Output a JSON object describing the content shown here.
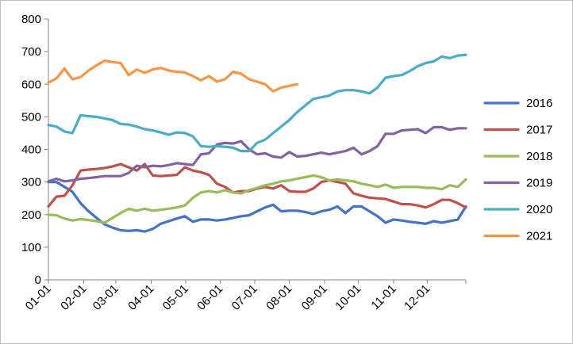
{
  "chart_data": {
    "type": "line",
    "title": "",
    "xlabel": "",
    "ylabel": "",
    "ylim": [
      0,
      800
    ],
    "yticks": [
      0,
      100,
      200,
      300,
      400,
      500,
      600,
      700,
      800
    ],
    "xlim": [
      0,
      52
    ],
    "x_tick_labels": [
      "01-01",
      "02-01",
      "03-01",
      "04-01",
      "05-01",
      "06-01",
      "07-01",
      "08-01",
      "09-01",
      "10-01",
      "11-01",
      "12-01"
    ],
    "x_tick_positions": [
      0,
      4.4,
      8.4,
      12.8,
      17.1,
      21.4,
      25.7,
      30.0,
      34.4,
      38.6,
      43.0,
      47.2
    ],
    "grid": false,
    "legend_position": "right",
    "series": [
      {
        "name": "2016",
        "color": "#4472c4",
        "x": [
          0,
          1,
          2,
          3,
          4,
          5,
          6,
          7,
          8,
          9,
          10,
          11,
          12,
          13,
          14,
          15,
          16,
          17,
          18,
          19,
          20,
          21,
          22,
          23,
          24,
          25,
          26,
          27,
          28,
          29,
          30,
          31,
          32,
          33,
          34,
          35,
          36,
          37,
          38,
          39,
          40,
          41,
          42,
          43,
          44,
          45,
          46,
          47,
          48,
          49,
          50,
          51,
          52
        ],
        "y": [
          300,
          300,
          285,
          270,
          235,
          210,
          190,
          170,
          160,
          152,
          150,
          152,
          148,
          156,
          172,
          180,
          188,
          195,
          178,
          185,
          185,
          182,
          185,
          190,
          195,
          198,
          210,
          222,
          230,
          210,
          212,
          212,
          208,
          202,
          210,
          215,
          225,
          205,
          225,
          225,
          210,
          195,
          175,
          185,
          182,
          178,
          175,
          172,
          180,
          175,
          180,
          185,
          225
        ]
      },
      {
        "name": "2017",
        "color": "#c0504d",
        "x": [
          0,
          1,
          2,
          3,
          4,
          5,
          6,
          7,
          8,
          9,
          10,
          11,
          12,
          13,
          14,
          15,
          16,
          17,
          18,
          19,
          20,
          21,
          22,
          23,
          24,
          25,
          26,
          27,
          28,
          29,
          30,
          31,
          32,
          33,
          34,
          35,
          36,
          37,
          38,
          39,
          40,
          41,
          42,
          43,
          44,
          45,
          46,
          47,
          48,
          49,
          50,
          51,
          52
        ],
        "y": [
          225,
          255,
          258,
          290,
          335,
          338,
          340,
          343,
          348,
          355,
          345,
          335,
          355,
          320,
          318,
          320,
          322,
          345,
          335,
          330,
          322,
          295,
          285,
          268,
          272,
          272,
          280,
          285,
          280,
          290,
          272,
          270,
          270,
          280,
          300,
          305,
          300,
          295,
          265,
          258,
          252,
          250,
          248,
          240,
          232,
          232,
          228,
          222,
          232,
          245,
          245,
          235,
          222
        ]
      },
      {
        "name": "2018",
        "color": "#9bbb59",
        "x": [
          0,
          1,
          2,
          3,
          4,
          5,
          6,
          7,
          8,
          9,
          10,
          11,
          12,
          13,
          14,
          15,
          16,
          17,
          18,
          19,
          20,
          21,
          22,
          23,
          24,
          25,
          26,
          27,
          28,
          29,
          30,
          31,
          32,
          33,
          34,
          35,
          36,
          37,
          38,
          39,
          40,
          41,
          42,
          43,
          44,
          45,
          46,
          47,
          48,
          49,
          50,
          51,
          52
        ],
        "y": [
          200,
          198,
          188,
          182,
          186,
          183,
          180,
          175,
          190,
          205,
          218,
          212,
          218,
          212,
          215,
          218,
          222,
          228,
          252,
          268,
          272,
          268,
          275,
          268,
          265,
          275,
          282,
          290,
          295,
          302,
          305,
          310,
          315,
          320,
          315,
          305,
          308,
          305,
          302,
          295,
          290,
          285,
          292,
          282,
          285,
          285,
          285,
          282,
          282,
          278,
          290,
          285,
          308
        ]
      },
      {
        "name": "2019",
        "color": "#8064a2",
        "x": [
          0,
          1,
          2,
          3,
          4,
          5,
          6,
          7,
          8,
          9,
          10,
          11,
          12,
          13,
          14,
          15,
          16,
          17,
          18,
          19,
          20,
          21,
          22,
          23,
          24,
          25,
          26,
          27,
          28,
          29,
          30,
          31,
          32,
          33,
          34,
          35,
          36,
          37,
          38,
          39,
          40,
          41,
          42,
          43,
          44,
          45,
          46,
          47,
          48,
          49,
          50,
          51,
          52
        ],
        "y": [
          302,
          310,
          302,
          305,
          310,
          312,
          315,
          318,
          318,
          318,
          328,
          350,
          345,
          350,
          348,
          352,
          358,
          355,
          352,
          385,
          388,
          415,
          420,
          418,
          425,
          400,
          385,
          388,
          378,
          375,
          392,
          378,
          380,
          385,
          390,
          385,
          390,
          395,
          405,
          385,
          395,
          410,
          448,
          448,
          458,
          460,
          462,
          450,
          468,
          468,
          460,
          465,
          465
        ]
      },
      {
        "name": "2020",
        "color": "#4bacc6",
        "x": [
          0,
          1,
          2,
          3,
          4,
          5,
          6,
          7,
          8,
          9,
          10,
          11,
          12,
          13,
          14,
          15,
          16,
          17,
          18,
          19,
          20,
          21,
          22,
          23,
          24,
          25,
          26,
          27,
          28,
          29,
          30,
          31,
          32,
          33,
          34,
          35,
          36,
          37,
          38,
          39,
          40,
          41,
          42,
          43,
          44,
          45,
          46,
          47,
          48,
          49,
          50,
          51,
          52
        ],
        "y": [
          475,
          470,
          455,
          450,
          505,
          502,
          500,
          495,
          490,
          478,
          476,
          470,
          462,
          458,
          452,
          445,
          452,
          450,
          440,
          410,
          408,
          410,
          408,
          405,
          395,
          395,
          420,
          430,
          450,
          470,
          490,
          515,
          535,
          555,
          560,
          565,
          578,
          582,
          582,
          578,
          572,
          590,
          620,
          625,
          628,
          640,
          655,
          665,
          670,
          685,
          680,
          688,
          690
        ]
      },
      {
        "name": "2021",
        "color": "#f79646",
        "x": [
          0,
          1,
          2,
          3,
          4,
          5,
          6,
          7,
          8,
          9,
          10,
          11,
          12,
          13,
          14,
          15,
          16,
          17,
          18,
          19,
          20,
          21,
          22,
          23,
          24,
          25,
          26,
          27,
          28,
          29,
          30,
          31
        ],
        "y": [
          605,
          618,
          648,
          615,
          622,
          642,
          658,
          672,
          668,
          665,
          628,
          645,
          635,
          645,
          650,
          642,
          638,
          636,
          625,
          612,
          625,
          608,
          615,
          638,
          632,
          615,
          608,
          600,
          578,
          590,
          595,
          600
        ]
      }
    ]
  }
}
